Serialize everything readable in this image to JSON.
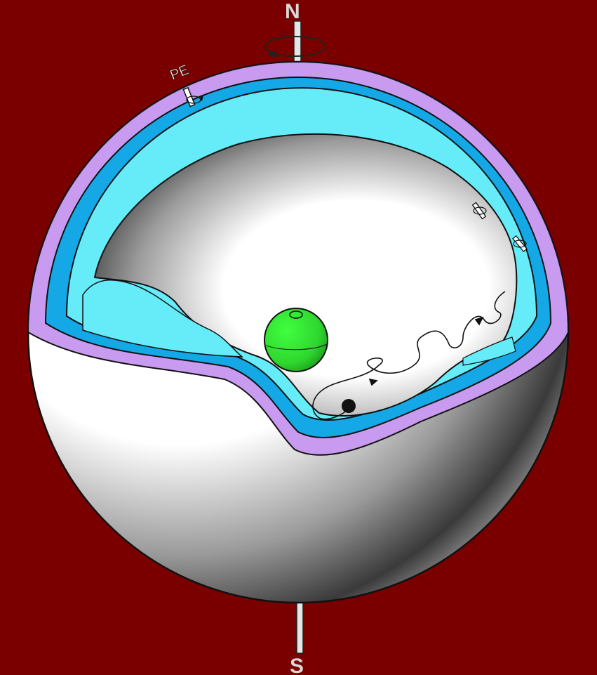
{
  "labels": {
    "north": "N",
    "south": "S",
    "pe": "PE"
  },
  "colors": {
    "background": "#7a0000",
    "outer_shell": "#c89af0",
    "middle_shell": "#15a8e6",
    "inner_shell": "#66ecf8",
    "sphere_white": "#ffffff",
    "inner_body": "#33e033",
    "ink": "#111111"
  }
}
